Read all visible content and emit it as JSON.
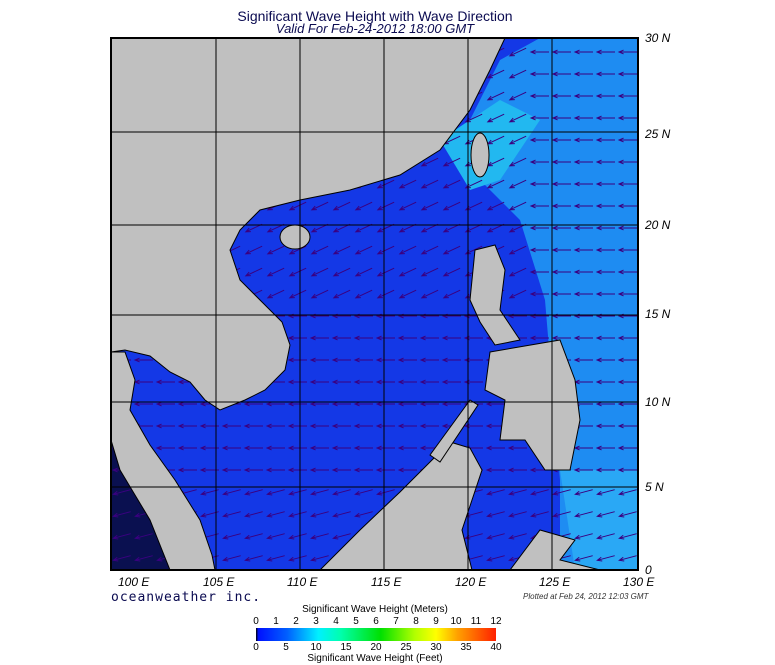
{
  "title": "Significant Wave Height with Wave Direction",
  "subtitle": "Valid For Feb-24-2012 18:00 GMT",
  "lon_labels": [
    "100 E",
    "105 E",
    "110 E",
    "115 E",
    "120 E",
    "125 E",
    "130 E"
  ],
  "lat_labels": [
    "30 N",
    "25 N",
    "20 N",
    "15 N",
    "10 N",
    "5 N",
    "0"
  ],
  "brand": "oceanweather inc.",
  "plotted": "Plotted at Feb 24, 2012 12:03 GMT",
  "colorbar": {
    "meters_title": "Significant Wave Height (Meters)",
    "feet_title": "Significant Wave Height (Feet)",
    "meters": [
      "0",
      "1",
      "2",
      "3",
      "4",
      "5",
      "6",
      "7",
      "8",
      "9",
      "10",
      "11",
      "12"
    ],
    "feet": [
      "0",
      "5",
      "10",
      "15",
      "20",
      "25",
      "30",
      "35",
      "40"
    ]
  },
  "colors": {
    "land": "#c0c0c0",
    "ocean": "#1438e6",
    "ocean_light": "#1e90f5",
    "arrow": "#3a0080"
  }
}
